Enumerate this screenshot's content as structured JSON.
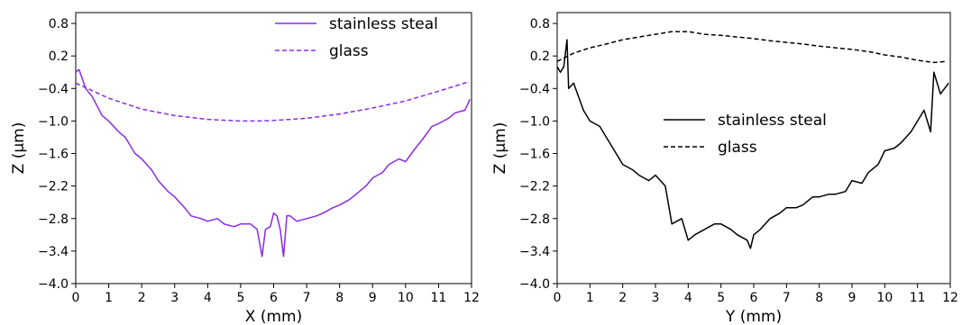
{
  "chart_data": [
    {
      "type": "line",
      "xlabel": "X (mm)",
      "ylabel": "Z (μm)",
      "xlim": [
        0,
        12
      ],
      "ylim": [
        -4.0,
        1.0
      ],
      "x_ticks": [
        0,
        1,
        2,
        3,
        4,
        5,
        6,
        7,
        8,
        9,
        10,
        11,
        12
      ],
      "x_tick_labels": [
        "0",
        "1",
        "2",
        "3",
        "4",
        "5",
        "6",
        "7",
        "8",
        "9",
        "10",
        "11",
        "12"
      ],
      "y_ticks": [
        -4.0,
        -3.4,
        -2.8,
        -2.2,
        -1.6,
        -1.0,
        -0.4,
        0.2,
        0.8
      ],
      "y_tick_labels": [
        "−4.0",
        "−3.4",
        "−2.8",
        "−2.2",
        "−1.6",
        "−1.0",
        "−0.4",
        "0.2",
        "0.8"
      ],
      "legend_position": "top-right",
      "color": "#8a2be2",
      "series": [
        {
          "name": "stainless steal",
          "style": "solid",
          "x": [
            0,
            0.1,
            0.3,
            0.5,
            0.8,
            1.0,
            1.3,
            1.5,
            1.8,
            2.0,
            2.3,
            2.5,
            2.8,
            3.0,
            3.3,
            3.5,
            3.8,
            4.0,
            4.3,
            4.5,
            4.8,
            5.0,
            5.3,
            5.5,
            5.65,
            5.75,
            5.9,
            6.0,
            6.1,
            6.2,
            6.3,
            6.4,
            6.5,
            6.7,
            7.0,
            7.3,
            7.5,
            7.8,
            8.0,
            8.3,
            8.5,
            8.8,
            9.0,
            9.3,
            9.5,
            9.8,
            10.0,
            10.3,
            10.5,
            10.8,
            11.0,
            11.3,
            11.5,
            11.8,
            11.95
          ],
          "values": [
            -0.1,
            -0.05,
            -0.4,
            -0.55,
            -0.9,
            -1.0,
            -1.2,
            -1.3,
            -1.6,
            -1.7,
            -1.9,
            -2.1,
            -2.3,
            -2.4,
            -2.6,
            -2.75,
            -2.8,
            -2.85,
            -2.8,
            -2.9,
            -2.95,
            -2.9,
            -2.9,
            -3.0,
            -3.5,
            -3.0,
            -2.95,
            -2.7,
            -2.75,
            -3.0,
            -3.5,
            -2.75,
            -2.75,
            -2.85,
            -2.8,
            -2.75,
            -2.7,
            -2.6,
            -2.55,
            -2.45,
            -2.35,
            -2.2,
            -2.05,
            -1.95,
            -1.8,
            -1.7,
            -1.75,
            -1.5,
            -1.35,
            -1.1,
            -1.05,
            -0.95,
            -0.85,
            -0.8,
            -0.6
          ]
        },
        {
          "name": "glass",
          "style": "dashed",
          "x": [
            0,
            1,
            2,
            3,
            4,
            5,
            5.5,
            6,
            7,
            8,
            9,
            10,
            11,
            11.9
          ],
          "values": [
            -0.3,
            -0.58,
            -0.78,
            -0.9,
            -0.97,
            -1.0,
            -1.0,
            -0.99,
            -0.95,
            -0.87,
            -0.76,
            -0.63,
            -0.45,
            -0.28
          ]
        }
      ]
    },
    {
      "type": "line",
      "xlabel": "Y (mm)",
      "ylabel": "Z (μm)",
      "xlim": [
        0,
        12
      ],
      "ylim": [
        -4.0,
        1.0
      ],
      "x_ticks": [
        0,
        1,
        2,
        3,
        4,
        5,
        6,
        7,
        8,
        9,
        10,
        11,
        12
      ],
      "x_tick_labels": [
        "0",
        "1",
        "2",
        "3",
        "4",
        "5",
        "6",
        "7",
        "8",
        "9",
        "10",
        "11",
        "12"
      ],
      "y_ticks": [
        -4.0,
        -3.4,
        -2.8,
        -2.2,
        -1.6,
        -1.0,
        -0.4,
        0.2,
        0.8
      ],
      "y_tick_labels": [
        "−4.0",
        "−3.4",
        "−2.8",
        "−2.2",
        "−1.6",
        "−1.0",
        "−0.4",
        "0.2",
        "0.8"
      ],
      "legend_position": "center",
      "color": "#000000",
      "series": [
        {
          "name": "stainless steal",
          "style": "solid",
          "x": [
            0,
            0.1,
            0.2,
            0.3,
            0.35,
            0.5,
            0.8,
            1.0,
            1.3,
            1.5,
            1.8,
            2.0,
            2.3,
            2.5,
            2.8,
            3.0,
            3.3,
            3.5,
            3.8,
            4.0,
            4.2,
            4.5,
            4.8,
            5.0,
            5.3,
            5.5,
            5.8,
            5.9,
            6.0,
            6.2,
            6.5,
            6.8,
            7.0,
            7.3,
            7.5,
            7.8,
            8.0,
            8.3,
            8.5,
            8.8,
            9.0,
            9.3,
            9.5,
            9.8,
            10.0,
            10.3,
            10.5,
            10.8,
            11.0,
            11.2,
            11.4,
            11.5,
            11.7,
            11.95
          ],
          "values": [
            0.0,
            -0.1,
            0.0,
            0.5,
            -0.4,
            -0.3,
            -0.8,
            -1.0,
            -1.1,
            -1.3,
            -1.6,
            -1.8,
            -1.9,
            -2.0,
            -2.1,
            -2.0,
            -2.2,
            -2.9,
            -2.8,
            -3.2,
            -3.1,
            -3.0,
            -2.9,
            -2.9,
            -3.0,
            -3.1,
            -3.2,
            -3.35,
            -3.1,
            -3.0,
            -2.8,
            -2.7,
            -2.6,
            -2.6,
            -2.55,
            -2.4,
            -2.4,
            -2.35,
            -2.35,
            -2.3,
            -2.1,
            -2.15,
            -1.95,
            -1.8,
            -1.55,
            -1.5,
            -1.4,
            -1.2,
            -1.0,
            -0.8,
            -1.2,
            -0.1,
            -0.5,
            -0.3
          ]
        },
        {
          "name": "glass",
          "style": "dashed",
          "x": [
            0,
            0.5,
            1.0,
            1.5,
            2.0,
            2.5,
            3.0,
            3.5,
            4.0,
            4.5,
            5.0,
            5.5,
            6.0,
            6.5,
            7.0,
            7.5,
            8.0,
            8.5,
            9.0,
            9.5,
            10.0,
            10.5,
            11.0,
            11.5,
            11.9
          ],
          "values": [
            0.1,
            0.25,
            0.35,
            0.42,
            0.5,
            0.55,
            0.6,
            0.65,
            0.65,
            0.6,
            0.58,
            0.55,
            0.52,
            0.48,
            0.45,
            0.42,
            0.38,
            0.35,
            0.32,
            0.28,
            0.22,
            0.18,
            0.12,
            0.08,
            0.1
          ]
        }
      ]
    }
  ]
}
